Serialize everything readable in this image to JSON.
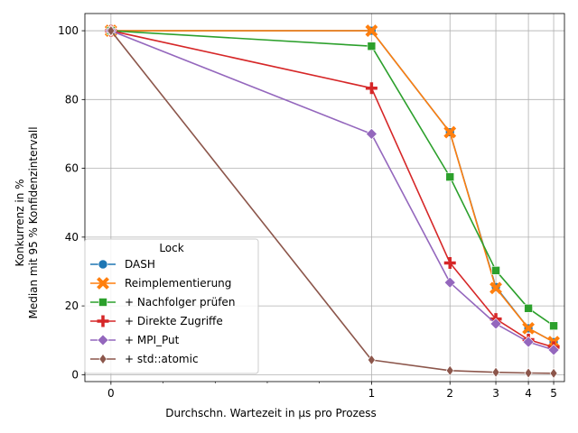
{
  "chart_data": {
    "type": "line",
    "title": "",
    "xlabel": "Durchschn. Wartezeit in µs pro Prozess",
    "ylabel": [
      "Konkurrenz in %",
      "Median mit 95 % Konfidenzintervall"
    ],
    "x_scale": "symlog",
    "x_ticks": [
      0,
      1,
      2,
      3,
      4,
      5
    ],
    "y_ticks": [
      0,
      20,
      40,
      60,
      80,
      100
    ],
    "ylim": [
      -2,
      105
    ],
    "grid": true,
    "legend": {
      "title": "Lock",
      "placement": "lower-left"
    },
    "x": [
      0,
      1,
      2,
      3,
      4,
      5
    ],
    "series": [
      {
        "name": "DASH",
        "color": "#1f77b4",
        "marker": "circle",
        "values": [
          100,
          100,
          70.5,
          25.5,
          13.5,
          9.5
        ]
      },
      {
        "name": "Reimplementierung",
        "color": "#ff7f0e",
        "marker": "x-filled",
        "values": [
          100,
          100,
          70.5,
          25.2,
          13.5,
          9.5
        ]
      },
      {
        "name": "+ Nachfolger prüfen",
        "color": "#2ca02c",
        "marker": "square",
        "values": [
          100,
          95.5,
          57.5,
          30.3,
          19.3,
          14.2
        ]
      },
      {
        "name": "+ Direkte Zugriffe",
        "color": "#d62728",
        "marker": "plus-filled",
        "values": [
          100,
          83.3,
          32.5,
          16.2,
          10.2,
          8.0
        ]
      },
      {
        "name": "+ MPI_Put",
        "color": "#9467bd",
        "marker": "diamond",
        "values": [
          100,
          70.0,
          26.8,
          14.8,
          9.5,
          7.2
        ]
      },
      {
        "name": "+ std::atomic",
        "color": "#8c564b",
        "marker": "thin-diamond",
        "values": [
          100,
          4.3,
          1.2,
          0.7,
          0.5,
          0.4
        ]
      }
    ]
  }
}
